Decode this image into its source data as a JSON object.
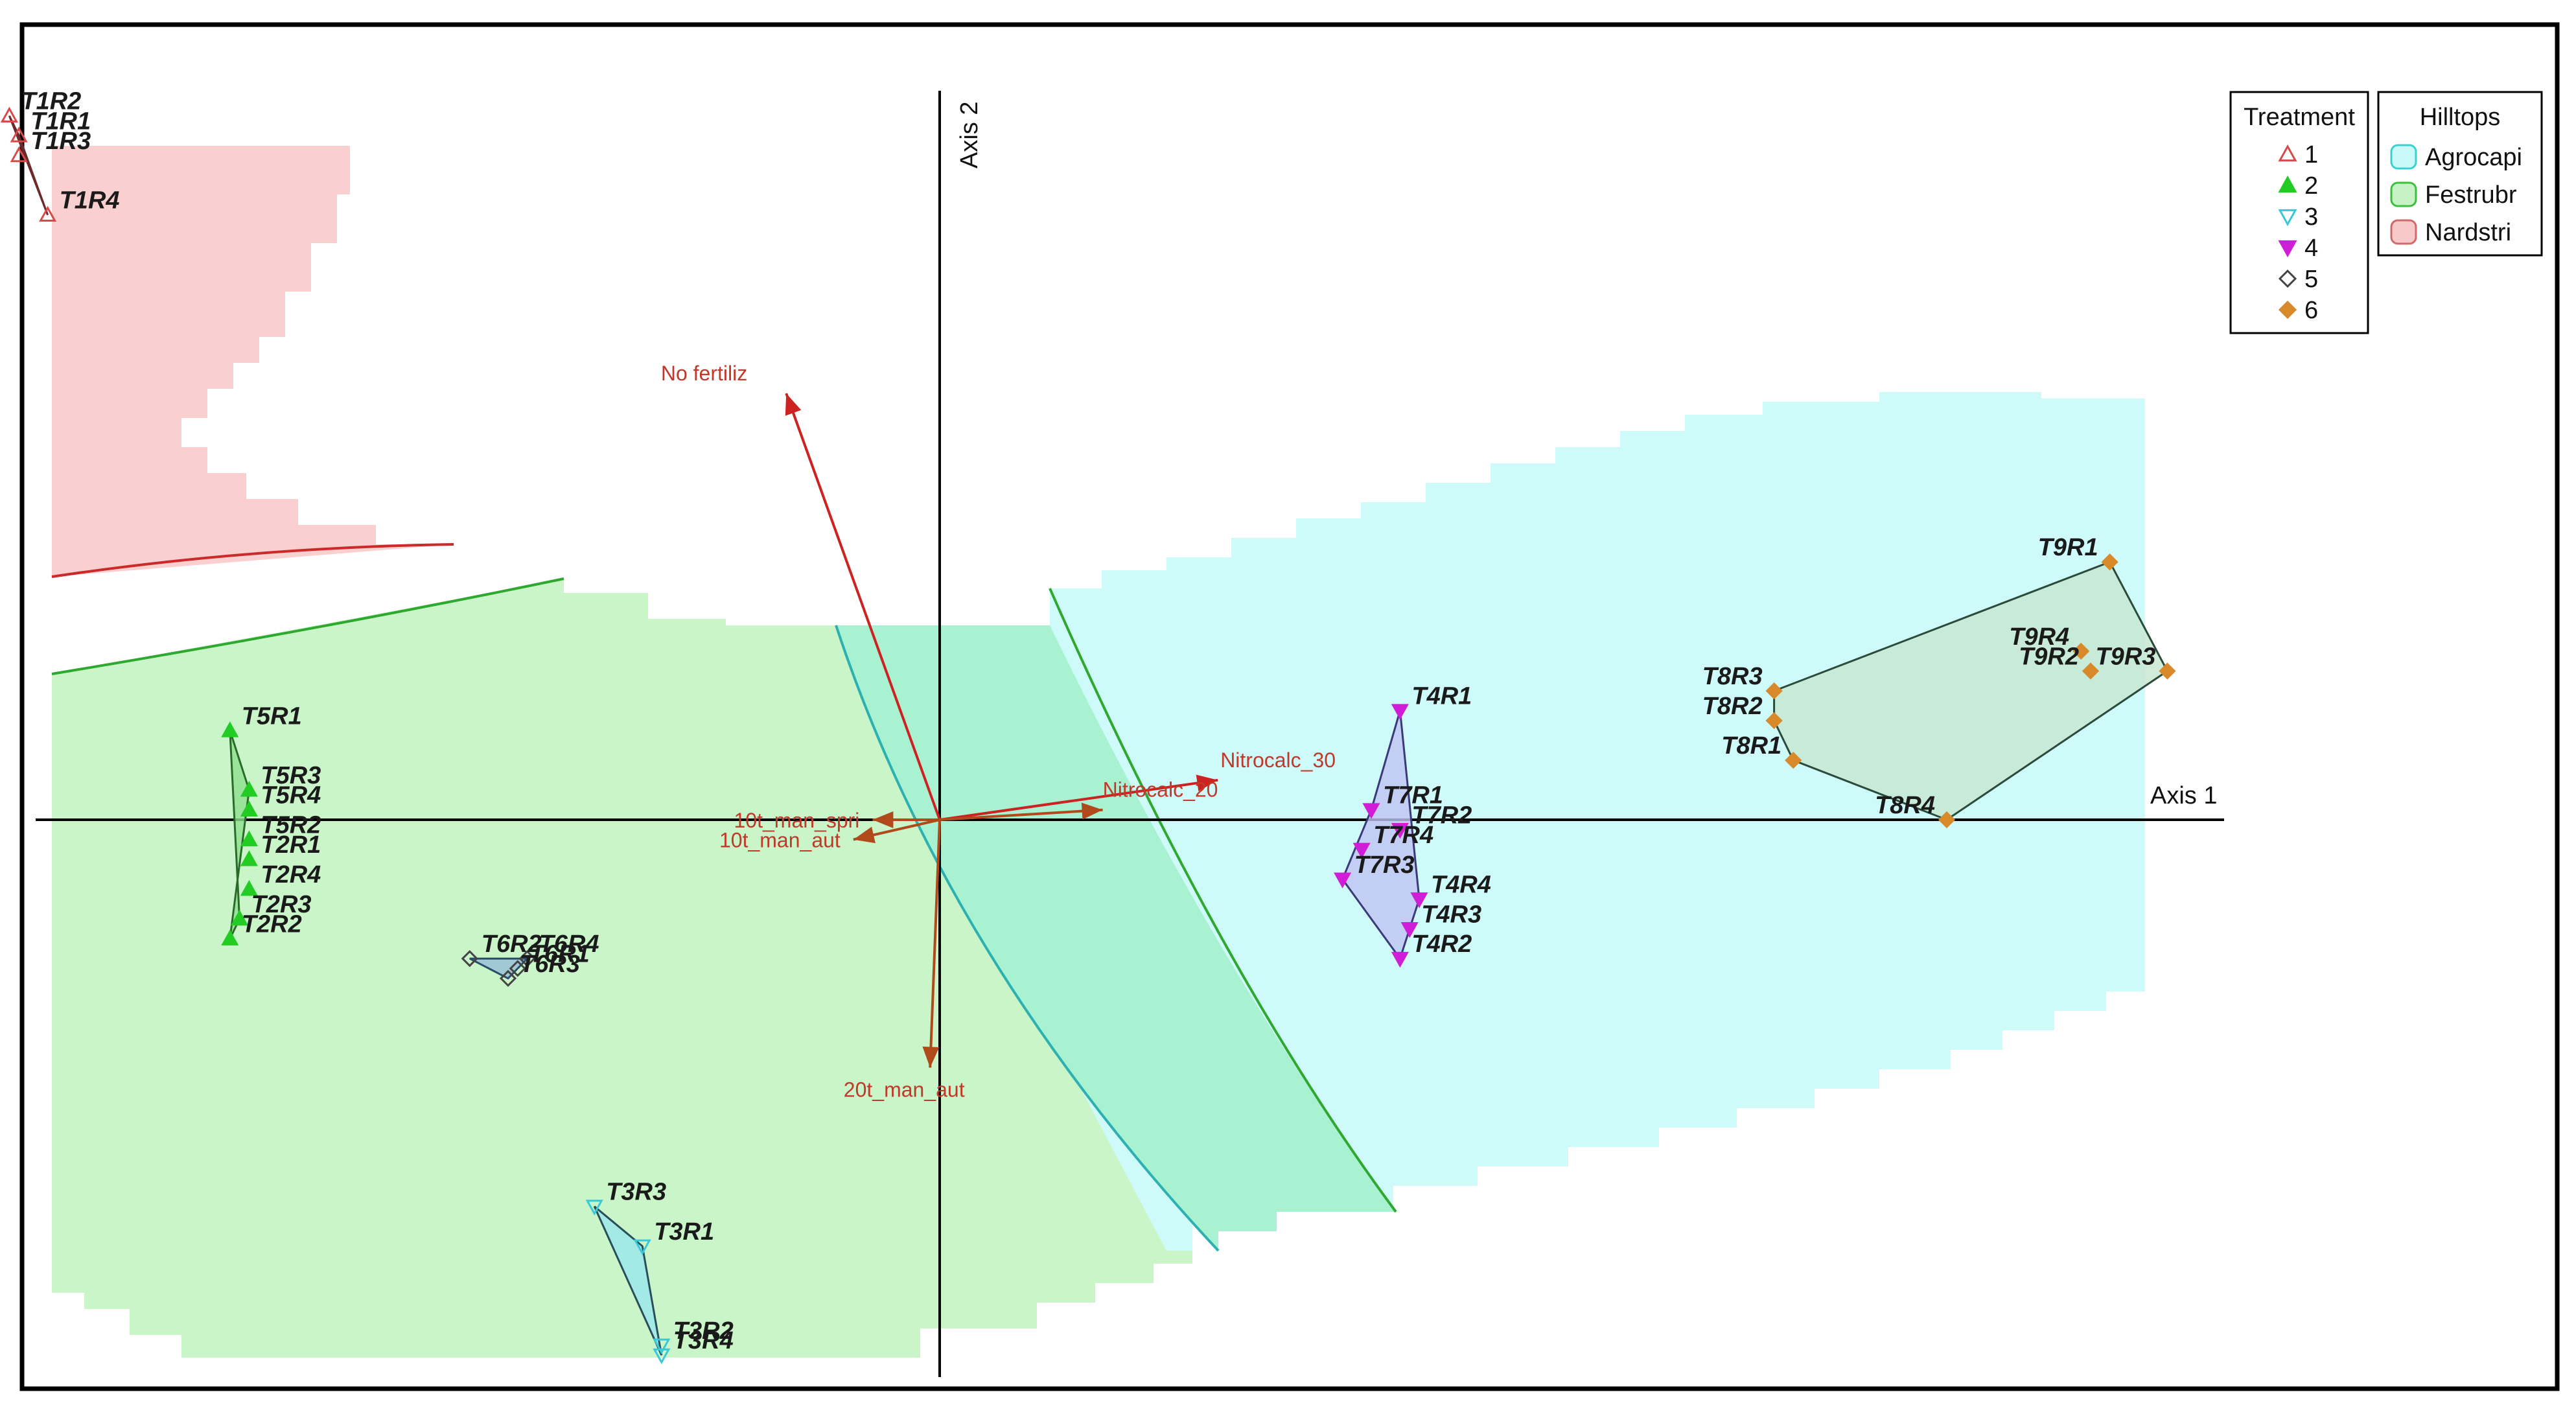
{
  "chart_data": {
    "type": "scatter",
    "title": "",
    "axes": {
      "x_label": "Axis 1",
      "y_label": "Axis 2",
      "xlim": [
        -1.0,
        1.3
      ],
      "ylim": [
        -0.6,
        0.8
      ]
    },
    "treatment_legend": {
      "title": "Treatment",
      "entries": [
        {
          "label": "1",
          "marker": "triangle-up-open",
          "color": "#d84a4a"
        },
        {
          "label": "2",
          "marker": "triangle-up-filled",
          "color": "#22cc22"
        },
        {
          "label": "3",
          "marker": "triangle-down-open",
          "color": "#38c8d8"
        },
        {
          "label": "4",
          "marker": "triangle-down-filled",
          "color": "#d01ed8"
        },
        {
          "label": "5",
          "marker": "diamond-open",
          "color": "#444444"
        },
        {
          "label": "6",
          "marker": "diamond-filled",
          "color": "#d88a2a"
        }
      ]
    },
    "hilltops_legend": {
      "title": "Hilltops",
      "entries": [
        {
          "label": "Agrocapi",
          "color": "#c9f9f9",
          "border": "#3ad0d0"
        },
        {
          "label": "Festrubr",
          "color": "#c6f2c6",
          "border": "#3cbf3c"
        },
        {
          "label": "Nardstri",
          "color": "#f7c9c9",
          "border": "#d06a6a"
        }
      ]
    },
    "points": [
      {
        "label": "T1R2",
        "treatment": "1",
        "x": -0.97,
        "y": 0.71
      },
      {
        "label": "T1R1",
        "treatment": "1",
        "x": -0.96,
        "y": 0.69
      },
      {
        "label": "T1R3",
        "treatment": "1",
        "x": -0.96,
        "y": 0.67
      },
      {
        "label": "T1R4",
        "treatment": "1",
        "x": -0.93,
        "y": 0.61
      },
      {
        "label": "T5R1",
        "treatment": "2",
        "x": -0.74,
        "y": 0.09
      },
      {
        "label": "T5R3",
        "treatment": "2",
        "x": -0.72,
        "y": 0.03
      },
      {
        "label": "T5R4",
        "treatment": "2",
        "x": -0.72,
        "y": 0.01
      },
      {
        "label": "T5R2",
        "treatment": "2",
        "x": -0.72,
        "y": -0.02
      },
      {
        "label": "T2R1",
        "treatment": "2",
        "x": -0.72,
        "y": -0.04
      },
      {
        "label": "T2R4",
        "treatment": "2",
        "x": -0.72,
        "y": -0.07
      },
      {
        "label": "T2R3",
        "treatment": "2",
        "x": -0.73,
        "y": -0.1
      },
      {
        "label": "T2R2",
        "treatment": "2",
        "x": -0.74,
        "y": -0.12
      },
      {
        "label": "T3R3",
        "treatment": "3",
        "x": -0.36,
        "y": -0.39
      },
      {
        "label": "T3R1",
        "treatment": "3",
        "x": -0.31,
        "y": -0.43
      },
      {
        "label": "T3R2",
        "treatment": "3",
        "x": -0.29,
        "y": -0.53
      },
      {
        "label": "T3R4",
        "treatment": "3",
        "x": -0.29,
        "y": -0.54
      },
      {
        "label": "T4R1",
        "treatment": "4",
        "x": 0.48,
        "y": 0.11
      },
      {
        "label": "T7R1",
        "treatment": "4",
        "x": 0.45,
        "y": 0.01
      },
      {
        "label": "T7R2",
        "treatment": "4",
        "x": 0.48,
        "y": -0.01
      },
      {
        "label": "T7R4",
        "treatment": "4",
        "x": 0.44,
        "y": -0.03
      },
      {
        "label": "T7R3",
        "treatment": "4",
        "x": 0.42,
        "y": -0.06
      },
      {
        "label": "T4R4",
        "treatment": "4",
        "x": 0.5,
        "y": -0.08
      },
      {
        "label": "T4R3",
        "treatment": "4",
        "x": 0.49,
        "y": -0.11
      },
      {
        "label": "T4R2",
        "treatment": "4",
        "x": 0.48,
        "y": -0.14
      },
      {
        "label": "T6R2",
        "treatment": "5",
        "x": -0.49,
        "y": -0.14
      },
      {
        "label": "T6R4",
        "treatment": "5",
        "x": -0.43,
        "y": -0.14
      },
      {
        "label": "T6R3",
        "treatment": "5",
        "x": -0.45,
        "y": -0.16
      },
      {
        "label": "T6R1",
        "treatment": "5",
        "x": -0.44,
        "y": -0.15
      },
      {
        "label": "T9R1",
        "treatment": "6",
        "x": 1.22,
        "y": 0.26
      },
      {
        "label": "T9R4",
        "treatment": "6",
        "x": 1.19,
        "y": 0.17
      },
      {
        "label": "T9R3",
        "treatment": "6",
        "x": 1.28,
        "y": 0.15
      },
      {
        "label": "T9R2",
        "treatment": "6",
        "x": 1.2,
        "y": 0.15
      },
      {
        "label": "T8R3",
        "treatment": "6",
        "x": 0.87,
        "y": 0.13
      },
      {
        "label": "T8R2",
        "treatment": "6",
        "x": 0.87,
        "y": 0.1
      },
      {
        "label": "T8R1",
        "treatment": "6",
        "x": 0.89,
        "y": 0.06
      },
      {
        "label": "T8R4",
        "treatment": "6",
        "x": 1.05,
        "y": 0.0
      }
    ],
    "hulls": [
      {
        "treatment": "1",
        "members": [
          "T1R2",
          "T1R1",
          "T1R4"
        ],
        "fill": "#f1b7b7",
        "stroke": "#6b2b2b"
      },
      {
        "treatment": "2",
        "members": [
          "T5R1",
          "T5R3",
          "T2R2",
          "T2R3"
        ],
        "fill": "#8fe08f",
        "stroke": "#2a6b2a"
      },
      {
        "treatment": "3",
        "members": [
          "T3R3",
          "T3R1",
          "T3R4"
        ],
        "fill": "#9ae6ee",
        "stroke": "#2a4d5a"
      },
      {
        "treatment": "4",
        "members": [
          "T4R1",
          "T4R4",
          "T4R2",
          "T7R3",
          "T7R1"
        ],
        "fill": "#c0c3f2",
        "stroke": "#3a3a7a"
      },
      {
        "treatment": "5",
        "members": [
          "T6R2",
          "T6R4",
          "T6R1",
          "T6R3"
        ],
        "fill": "#97bdd8",
        "stroke": "#2a4d6a"
      },
      {
        "treatment": "6",
        "members": [
          "T9R1",
          "T9R3",
          "T8R4",
          "T8R1",
          "T8R2",
          "T8R3"
        ],
        "fill": "#c7e6cf",
        "stroke": "#2a4a3a"
      }
    ],
    "vectors": [
      {
        "label": "No fertiliz",
        "x": -0.16,
        "y": 0.43,
        "color": "#cc2222"
      },
      {
        "label": "Nitrocalc_30",
        "x": 0.29,
        "y": 0.04,
        "color": "#cc2222"
      },
      {
        "label": "Nitrocalc_20",
        "x": 0.17,
        "y": 0.01,
        "color": "#b04a1a"
      },
      {
        "label": "10t_man_spri",
        "x": -0.07,
        "y": 0.0,
        "color": "#b04a1a"
      },
      {
        "label": "10t_man_aut",
        "x": -0.09,
        "y": -0.02,
        "color": "#b04a1a"
      },
      {
        "label": "20t_man_aut",
        "x": -0.01,
        "y": -0.25,
        "color": "#b04a1a"
      }
    ],
    "grid": false
  }
}
